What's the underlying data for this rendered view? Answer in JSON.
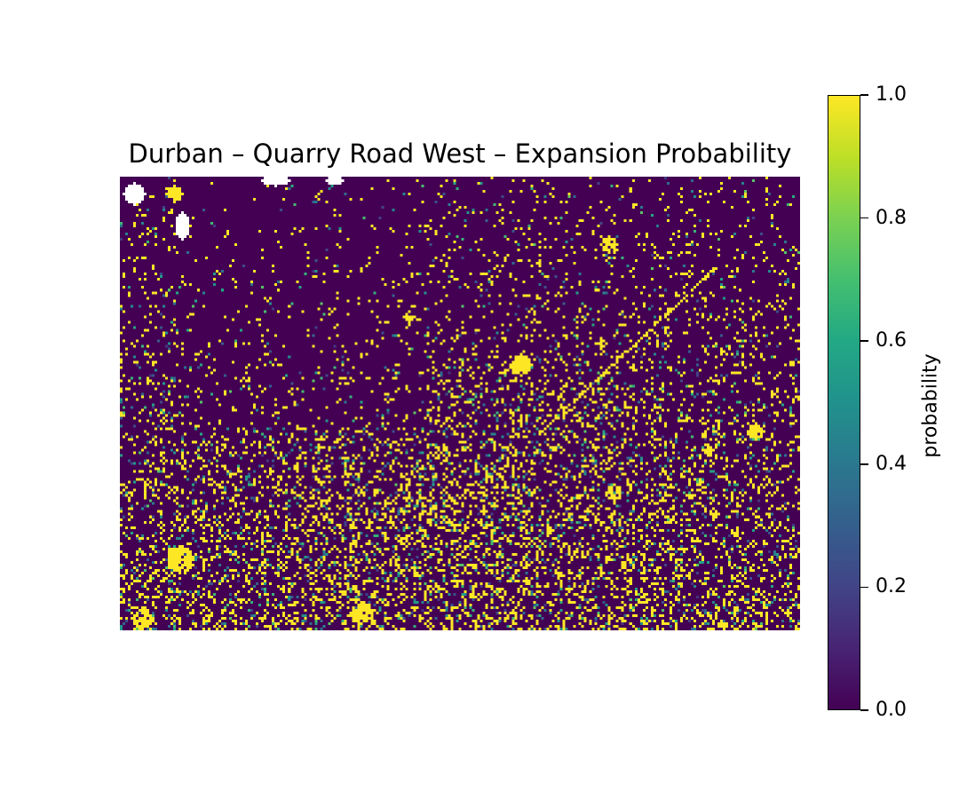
{
  "chart_data": {
    "type": "heatmap",
    "title": "Durban – Quarry Road West – Expansion Probability",
    "colormap": "viridis",
    "colorbar": {
      "label": "probability",
      "range": [
        0.0,
        1.0
      ],
      "ticks": [
        "0.0",
        "0.2",
        "0.4",
        "0.6",
        "0.8",
        "1.0"
      ]
    },
    "grid": {
      "columns": 255,
      "rows": 170
    },
    "no_data_color": "#ffffff",
    "low_color": "#440154",
    "high_color": "#fde725",
    "axes_visible": false
  }
}
